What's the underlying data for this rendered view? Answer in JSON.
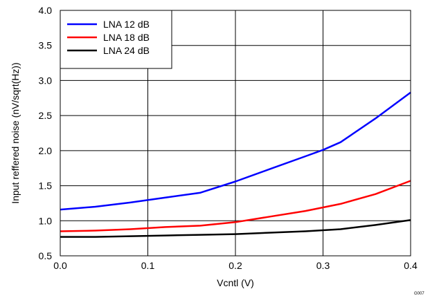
{
  "chart_data": {
    "type": "line",
    "title": "",
    "xlabel": "Vcntl (V)",
    "ylabel": "Input reffered noise (nV/sqrt(Hz))",
    "xlim": [
      0.0,
      0.4
    ],
    "ylim": [
      0.5,
      4.0
    ],
    "x_ticks": [
      0.0,
      0.1,
      0.2,
      0.3,
      0.4
    ],
    "x_tick_labels": [
      "0.0",
      "0.1",
      "0.2",
      "0.3",
      "0.4"
    ],
    "y_ticks": [
      0.5,
      1.0,
      1.5,
      2.0,
      2.5,
      3.0,
      3.5,
      4.0
    ],
    "y_tick_labels": [
      "0.5",
      "1.0",
      "1.5",
      "2.0",
      "2.5",
      "3.0",
      "3.5",
      "4.0"
    ],
    "grid": true,
    "legend_position": "top-left",
    "series": [
      {
        "name": "LNA 12 dB",
        "color": "#0000ff",
        "x": [
          0.0,
          0.04,
          0.08,
          0.12,
          0.16,
          0.2,
          0.24,
          0.28,
          0.3,
          0.32,
          0.36,
          0.4
        ],
        "y": [
          1.16,
          1.2,
          1.26,
          1.33,
          1.4,
          1.56,
          1.74,
          1.92,
          2.01,
          2.12,
          2.46,
          2.83
        ]
      },
      {
        "name": "LNA 18 dB",
        "color": "#ff0000",
        "x": [
          0.0,
          0.04,
          0.08,
          0.12,
          0.16,
          0.2,
          0.24,
          0.28,
          0.32,
          0.36,
          0.4
        ],
        "y": [
          0.85,
          0.86,
          0.88,
          0.91,
          0.93,
          0.98,
          1.06,
          1.14,
          1.24,
          1.38,
          1.57
        ]
      },
      {
        "name": "LNA 24 dB",
        "color": "#000000",
        "x": [
          0.0,
          0.04,
          0.08,
          0.12,
          0.16,
          0.2,
          0.24,
          0.28,
          0.32,
          0.36,
          0.4
        ],
        "y": [
          0.77,
          0.77,
          0.78,
          0.79,
          0.8,
          0.81,
          0.83,
          0.85,
          0.88,
          0.94,
          1.01
        ]
      }
    ],
    "figure_code": "G007"
  }
}
